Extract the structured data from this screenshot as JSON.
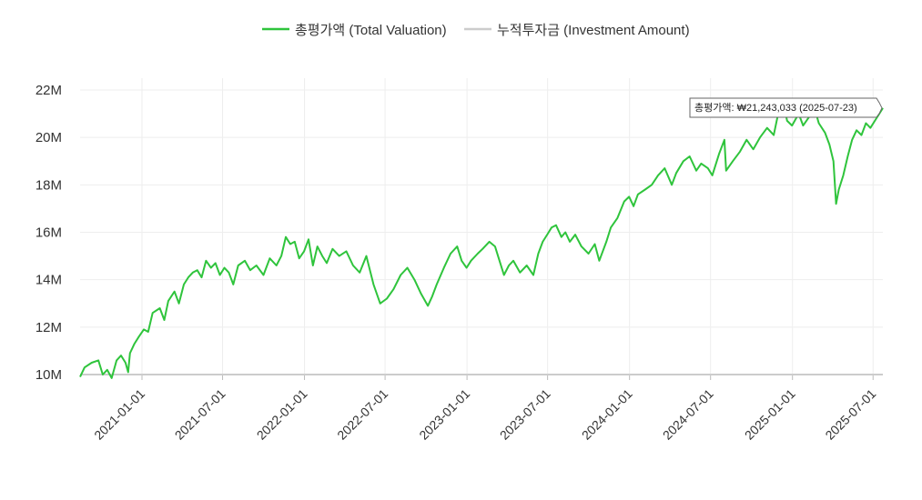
{
  "chart_data": {
    "type": "line",
    "legend_placement": "top-center",
    "grid": true,
    "series": [
      {
        "name": "총평가액 (Total Valuation)",
        "color": "#2fc43c",
        "points": [
          [
            "2020-08-15",
            9.9
          ],
          [
            "2020-08-25",
            10.3
          ],
          [
            "2020-09-10",
            10.5
          ],
          [
            "2020-09-25",
            10.6
          ],
          [
            "2020-10-05",
            10.0
          ],
          [
            "2020-10-15",
            10.2
          ],
          [
            "2020-10-25",
            9.85
          ],
          [
            "2020-11-05",
            10.6
          ],
          [
            "2020-11-15",
            10.8
          ],
          [
            "2020-11-25",
            10.5
          ],
          [
            "2020-12-01",
            10.1
          ],
          [
            "2020-12-05",
            10.9
          ],
          [
            "2020-12-15",
            11.3
          ],
          [
            "2020-12-25",
            11.6
          ],
          [
            "2021-01-05",
            11.9
          ],
          [
            "2021-01-15",
            11.8
          ],
          [
            "2021-01-25",
            12.6
          ],
          [
            "2021-02-10",
            12.8
          ],
          [
            "2021-02-20",
            12.3
          ],
          [
            "2021-03-01",
            13.1
          ],
          [
            "2021-03-15",
            13.5
          ],
          [
            "2021-03-25",
            13.0
          ],
          [
            "2021-04-05",
            13.8
          ],
          [
            "2021-04-15",
            14.1
          ],
          [
            "2021-04-25",
            14.3
          ],
          [
            "2021-05-05",
            14.4
          ],
          [
            "2021-05-15",
            14.1
          ],
          [
            "2021-05-25",
            14.8
          ],
          [
            "2021-06-05",
            14.5
          ],
          [
            "2021-06-15",
            14.7
          ],
          [
            "2021-06-25",
            14.2
          ],
          [
            "2021-07-05",
            14.5
          ],
          [
            "2021-07-15",
            14.3
          ],
          [
            "2021-07-25",
            13.8
          ],
          [
            "2021-08-05",
            14.6
          ],
          [
            "2021-08-20",
            14.8
          ],
          [
            "2021-09-01",
            14.4
          ],
          [
            "2021-09-15",
            14.6
          ],
          [
            "2021-10-01",
            14.2
          ],
          [
            "2021-10-15",
            14.9
          ],
          [
            "2021-10-30",
            14.6
          ],
          [
            "2021-11-10",
            15.0
          ],
          [
            "2021-11-20",
            15.8
          ],
          [
            "2021-11-30",
            15.5
          ],
          [
            "2021-12-10",
            15.6
          ],
          [
            "2021-12-20",
            14.9
          ],
          [
            "2021-12-31",
            15.2
          ],
          [
            "2022-01-10",
            15.7
          ],
          [
            "2022-01-20",
            14.6
          ],
          [
            "2022-01-30",
            15.4
          ],
          [
            "2022-02-10",
            15.0
          ],
          [
            "2022-02-20",
            14.7
          ],
          [
            "2022-03-05",
            15.3
          ],
          [
            "2022-03-20",
            15.0
          ],
          [
            "2022-04-05",
            15.2
          ],
          [
            "2022-04-20",
            14.6
          ],
          [
            "2022-05-05",
            14.3
          ],
          [
            "2022-05-20",
            15.0
          ],
          [
            "2022-06-05",
            13.8
          ],
          [
            "2022-06-20",
            13.0
          ],
          [
            "2022-07-05",
            13.2
          ],
          [
            "2022-07-20",
            13.6
          ],
          [
            "2022-08-05",
            14.2
          ],
          [
            "2022-08-20",
            14.5
          ],
          [
            "2022-09-05",
            14.0
          ],
          [
            "2022-09-20",
            13.4
          ],
          [
            "2022-10-05",
            12.9
          ],
          [
            "2022-10-15",
            13.3
          ],
          [
            "2022-10-25",
            13.8
          ],
          [
            "2022-11-10",
            14.5
          ],
          [
            "2022-11-25",
            15.1
          ],
          [
            "2022-12-10",
            15.4
          ],
          [
            "2022-12-20",
            14.8
          ],
          [
            "2022-12-31",
            14.5
          ],
          [
            "2023-01-10",
            14.8
          ],
          [
            "2023-01-25",
            15.1
          ],
          [
            "2023-02-05",
            15.3
          ],
          [
            "2023-02-20",
            15.6
          ],
          [
            "2023-03-05",
            15.4
          ],
          [
            "2023-03-15",
            14.8
          ],
          [
            "2023-03-25",
            14.2
          ],
          [
            "2023-04-05",
            14.6
          ],
          [
            "2023-04-15",
            14.8
          ],
          [
            "2023-04-30",
            14.3
          ],
          [
            "2023-05-15",
            14.6
          ],
          [
            "2023-05-30",
            14.2
          ],
          [
            "2023-06-10",
            15.1
          ],
          [
            "2023-06-20",
            15.6
          ],
          [
            "2023-06-30",
            15.9
          ],
          [
            "2023-07-10",
            16.2
          ],
          [
            "2023-07-20",
            16.3
          ],
          [
            "2023-08-01",
            15.8
          ],
          [
            "2023-08-10",
            16.0
          ],
          [
            "2023-08-20",
            15.6
          ],
          [
            "2023-09-01",
            15.9
          ],
          [
            "2023-09-15",
            15.4
          ],
          [
            "2023-10-01",
            15.1
          ],
          [
            "2023-10-15",
            15.5
          ],
          [
            "2023-10-25",
            14.8
          ],
          [
            "2023-11-10",
            15.6
          ],
          [
            "2023-11-20",
            16.2
          ],
          [
            "2023-12-05",
            16.6
          ],
          [
            "2023-12-20",
            17.3
          ],
          [
            "2023-12-31",
            17.5
          ],
          [
            "2024-01-10",
            17.1
          ],
          [
            "2024-01-20",
            17.6
          ],
          [
            "2024-02-05",
            17.8
          ],
          [
            "2024-02-20",
            18.0
          ],
          [
            "2024-03-05",
            18.4
          ],
          [
            "2024-03-20",
            18.7
          ],
          [
            "2024-04-05",
            18.0
          ],
          [
            "2024-04-15",
            18.5
          ],
          [
            "2024-05-01",
            19.0
          ],
          [
            "2024-05-15",
            19.2
          ],
          [
            "2024-05-30",
            18.6
          ],
          [
            "2024-06-10",
            18.9
          ],
          [
            "2024-06-25",
            18.7
          ],
          [
            "2024-07-05",
            18.4
          ],
          [
            "2024-07-20",
            19.3
          ],
          [
            "2024-08-01",
            19.9
          ],
          [
            "2024-08-05",
            18.6
          ],
          [
            "2024-08-20",
            19.0
          ],
          [
            "2024-09-05",
            19.4
          ],
          [
            "2024-09-20",
            19.9
          ],
          [
            "2024-10-05",
            19.5
          ],
          [
            "2024-10-20",
            20.0
          ],
          [
            "2024-11-05",
            20.4
          ],
          [
            "2024-11-20",
            20.1
          ],
          [
            "2024-12-01",
            21.1
          ],
          [
            "2024-12-10",
            21.6
          ],
          [
            "2024-12-20",
            20.7
          ],
          [
            "2024-12-31",
            20.5
          ],
          [
            "2025-01-15",
            21.0
          ],
          [
            "2025-01-25",
            20.5
          ],
          [
            "2025-02-05",
            20.8
          ],
          [
            "2025-02-20",
            21.2
          ],
          [
            "2025-03-01",
            20.6
          ],
          [
            "2025-03-15",
            20.2
          ],
          [
            "2025-03-25",
            19.7
          ],
          [
            "2025-04-03",
            19.0
          ],
          [
            "2025-04-09",
            17.2
          ],
          [
            "2025-04-15",
            17.8
          ],
          [
            "2025-04-25",
            18.4
          ],
          [
            "2025-05-05",
            19.2
          ],
          [
            "2025-05-15",
            19.9
          ],
          [
            "2025-05-25",
            20.3
          ],
          [
            "2025-06-05",
            20.1
          ],
          [
            "2025-06-15",
            20.6
          ],
          [
            "2025-06-25",
            20.4
          ],
          [
            "2025-07-05",
            20.7
          ],
          [
            "2025-07-15",
            21.0
          ],
          [
            "2025-07-23",
            21.24
          ]
        ]
      },
      {
        "name": "누적투자금 (Investment Amount)",
        "color": "#cccccc",
        "points": [
          [
            "2020-08-15",
            10.0
          ],
          [
            "2025-07-23",
            10.0
          ]
        ]
      }
    ],
    "y_ticks": [
      {
        "value": 10,
        "label": "10M"
      },
      {
        "value": 12,
        "label": "12M"
      },
      {
        "value": 14,
        "label": "14M"
      },
      {
        "value": 16,
        "label": "16M"
      },
      {
        "value": 18,
        "label": "18M"
      },
      {
        "value": 20,
        "label": "20M"
      },
      {
        "value": 22,
        "label": "22M"
      }
    ],
    "x_ticks": [
      "2021-01-01",
      "2021-07-01",
      "2022-01-01",
      "2022-07-01",
      "2023-01-01",
      "2023-07-01",
      "2024-01-01",
      "2024-07-01",
      "2025-01-01",
      "2025-07-01"
    ],
    "x_range": [
      "2020-08-15",
      "2025-07-23"
    ],
    "y_range": [
      10,
      22
    ],
    "tooltip": {
      "label": "총평가액: ₩21,243,033 (2025-07-23)",
      "date": "2025-07-23",
      "value": 21.24
    }
  }
}
